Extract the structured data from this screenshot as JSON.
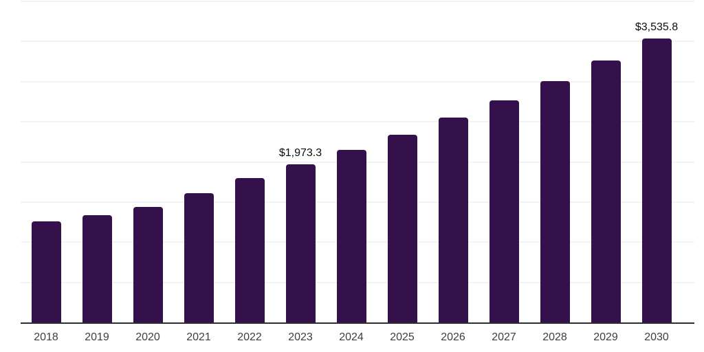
{
  "chart_data": {
    "type": "bar",
    "title": "",
    "xlabel": "",
    "ylabel": "",
    "categories": [
      "2018",
      "2019",
      "2020",
      "2021",
      "2022",
      "2023",
      "2024",
      "2025",
      "2026",
      "2027",
      "2028",
      "2029",
      "2030"
    ],
    "values": [
      1256,
      1333,
      1435,
      1614,
      1802,
      1973.3,
      2152,
      2340,
      2554,
      2767,
      3006,
      3263,
      3535.8
    ],
    "point_labels": [
      "",
      "",
      "",
      "",
      "",
      "$1,973.3",
      "",
      "",
      "",
      "",
      "",
      "",
      "$3,535.8"
    ],
    "ylim": [
      0,
      4000
    ],
    "gridline_step": 500,
    "grid": "on",
    "legend": "none",
    "y_axis_labels": "none",
    "colors": {
      "bar": "#34114a",
      "axis_line": "#2e2e2e",
      "gridline": "#f3f3f3",
      "tick_label": "#3d3d3d",
      "data_label": "#0d0d0d",
      "background": "#ffffff"
    }
  }
}
